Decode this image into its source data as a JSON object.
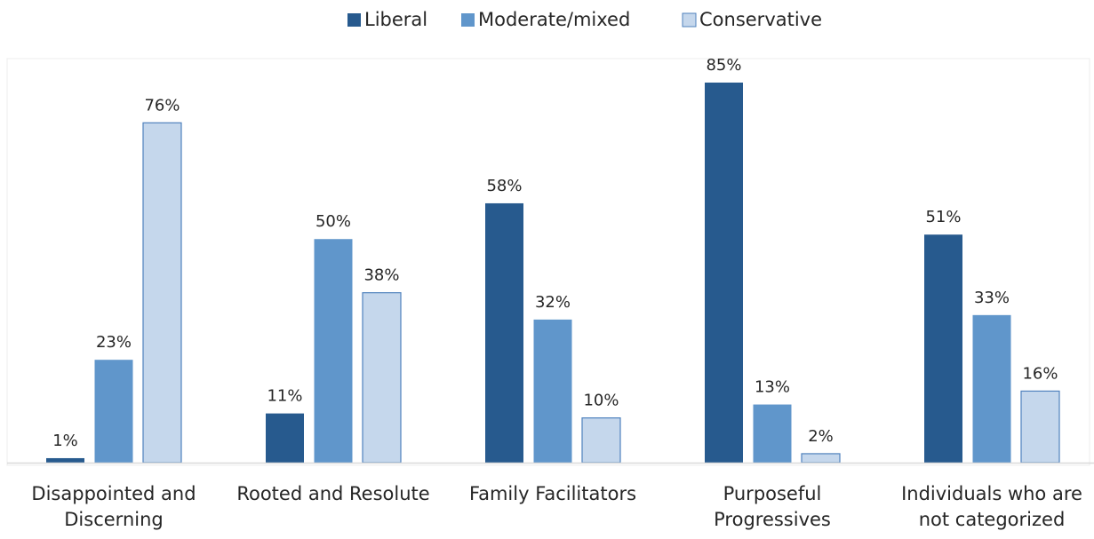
{
  "chart_data": {
    "type": "bar",
    "categories": [
      "Disappointed and Discerning",
      "Rooted and Resolute",
      "Family Facilitators",
      "Purposeful Progressives",
      "Individuals who are not categorized"
    ],
    "series": [
      {
        "name": "Liberal",
        "values": [
          1,
          11,
          58,
          85,
          51
        ],
        "color": "#275A8E"
      },
      {
        "name": "Moderate/mixed",
        "values": [
          23,
          50,
          32,
          13,
          33
        ],
        "color": "#6096CB"
      },
      {
        "name": "Conservative",
        "values": [
          76,
          38,
          10,
          2,
          16
        ],
        "color": "#C5D7EC"
      }
    ],
    "value_suffix": "%",
    "ylim": [
      0,
      90
    ],
    "grid": false,
    "legend_position": "top-center",
    "title": "",
    "xlabel": "",
    "ylabel": ""
  }
}
